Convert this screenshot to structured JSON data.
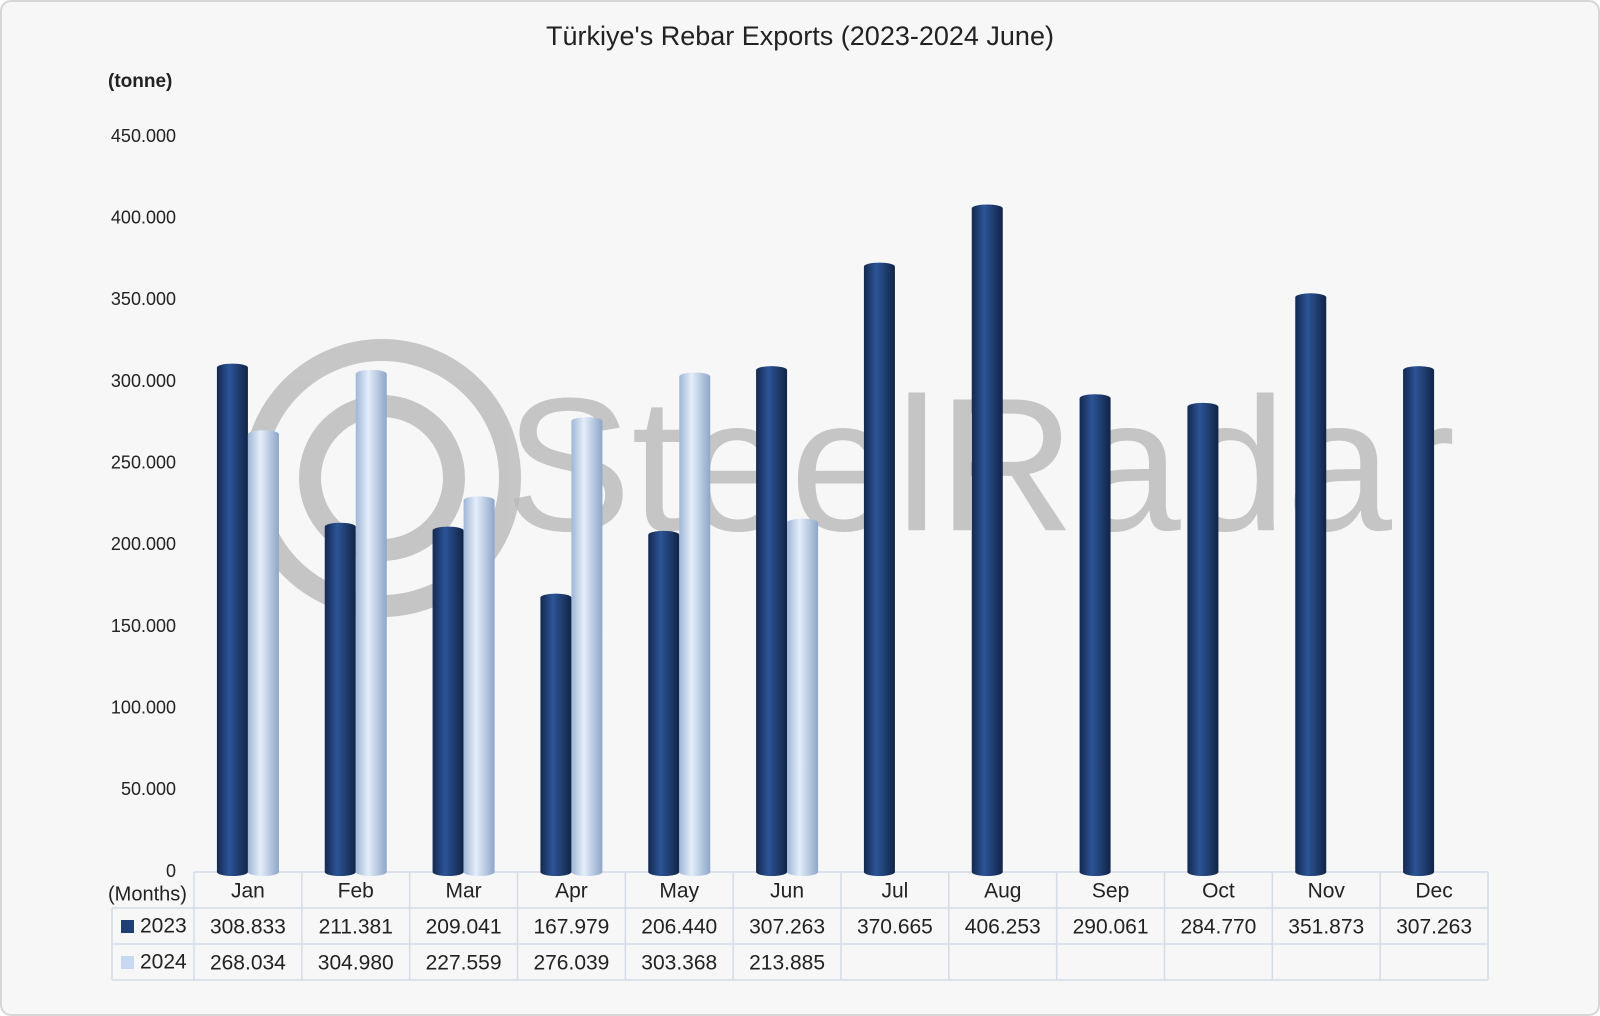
{
  "chart_data": {
    "type": "bar",
    "title": "Türkiye's Rebar Exports (2023-2024 June)",
    "y_label": "(tonne)",
    "x_label": "(Months)",
    "watermark": "SteelRadar",
    "categories": [
      "Jan",
      "Feb",
      "Mar",
      "Apr",
      "May",
      "Jun",
      "Jul",
      "Aug",
      "Sep",
      "Oct",
      "Nov",
      "Dec"
    ],
    "series": [
      {
        "name": "2023",
        "color": "#1f3f75",
        "values": [
          308833,
          211381,
          209041,
          167979,
          206440,
          307263,
          370665,
          406253,
          290061,
          284770,
          351873,
          307263
        ],
        "value_labels": [
          "308.833",
          "211.381",
          "209.041",
          "167.979",
          "206.440",
          "307.263",
          "370.665",
          "406.253",
          "290.061",
          "284.770",
          "351.873",
          "307.263"
        ]
      },
      {
        "name": "2024",
        "color": "#c6d9f1",
        "values": [
          268034,
          304980,
          227559,
          276039,
          303368,
          213885,
          null,
          null,
          null,
          null,
          null,
          null
        ],
        "value_labels": [
          "268.034",
          "304.980",
          "227.559",
          "276.039",
          "303.368",
          "213.885",
          null,
          null,
          null,
          null,
          null,
          null
        ]
      }
    ],
    "ylim": [
      0,
      450000
    ],
    "yticks": [
      0,
      {
        "value": 50000,
        "label": "50.000"
      },
      {
        "value": 100000,
        "label": "100.000"
      },
      {
        "value": 150000,
        "label": "150.000"
      },
      {
        "value": 200000,
        "label": "200.000"
      },
      {
        "value": 250000,
        "label": "250.000"
      },
      {
        "value": 300000,
        "label": "300.000"
      },
      {
        "value": 350000,
        "label": "350.000"
      },
      {
        "value": 400000,
        "label": "400.000"
      },
      {
        "value": 450000,
        "label": "450.000"
      }
    ],
    "grid": false
  }
}
